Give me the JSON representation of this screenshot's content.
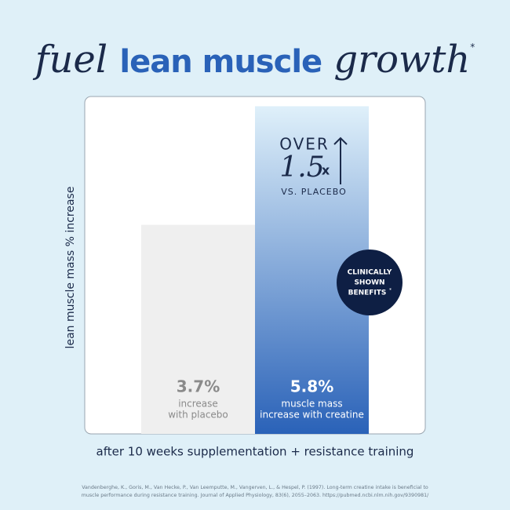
{
  "title": {
    "part1": "fuel",
    "part2": "lean muscle",
    "part3": "growth",
    "mark": "*"
  },
  "chart_data": {
    "type": "bar",
    "values": [
      3.7,
      5.8
    ],
    "value_labels": [
      "3.7%",
      "5.8%"
    ],
    "descriptions": [
      [
        "increase",
        "with placebo"
      ],
      [
        "muscle mass",
        "increase with creatine"
      ]
    ],
    "colors": [
      "#efefef",
      "#2a62b8"
    ],
    "y_label": "lean muscle mass % increase",
    "x_label": "after 10 weeks supplementation + resistance training"
  },
  "callout": {
    "prefix": "OVER",
    "value": 1.5,
    "unit": "x",
    "suffix": "VS. PLACEBO"
  },
  "badge": {
    "lines": [
      "CLINICALLY",
      "SHOWN",
      "BENEFITS"
    ],
    "mark": "*"
  },
  "citation": [
    "Vandenberghe, K., Goris, M., Van Hecke, P., Van Leemputte, M., Vangerven, L., & Hespel, P. (1997). Long-term creatine intake is beneficial to",
    "muscle performance during resistance training. Journal of Applied Physiology, 83(6), 2055–2063. https://pubmed.ncbi.nlm.nih.gov/9390981/"
  ]
}
